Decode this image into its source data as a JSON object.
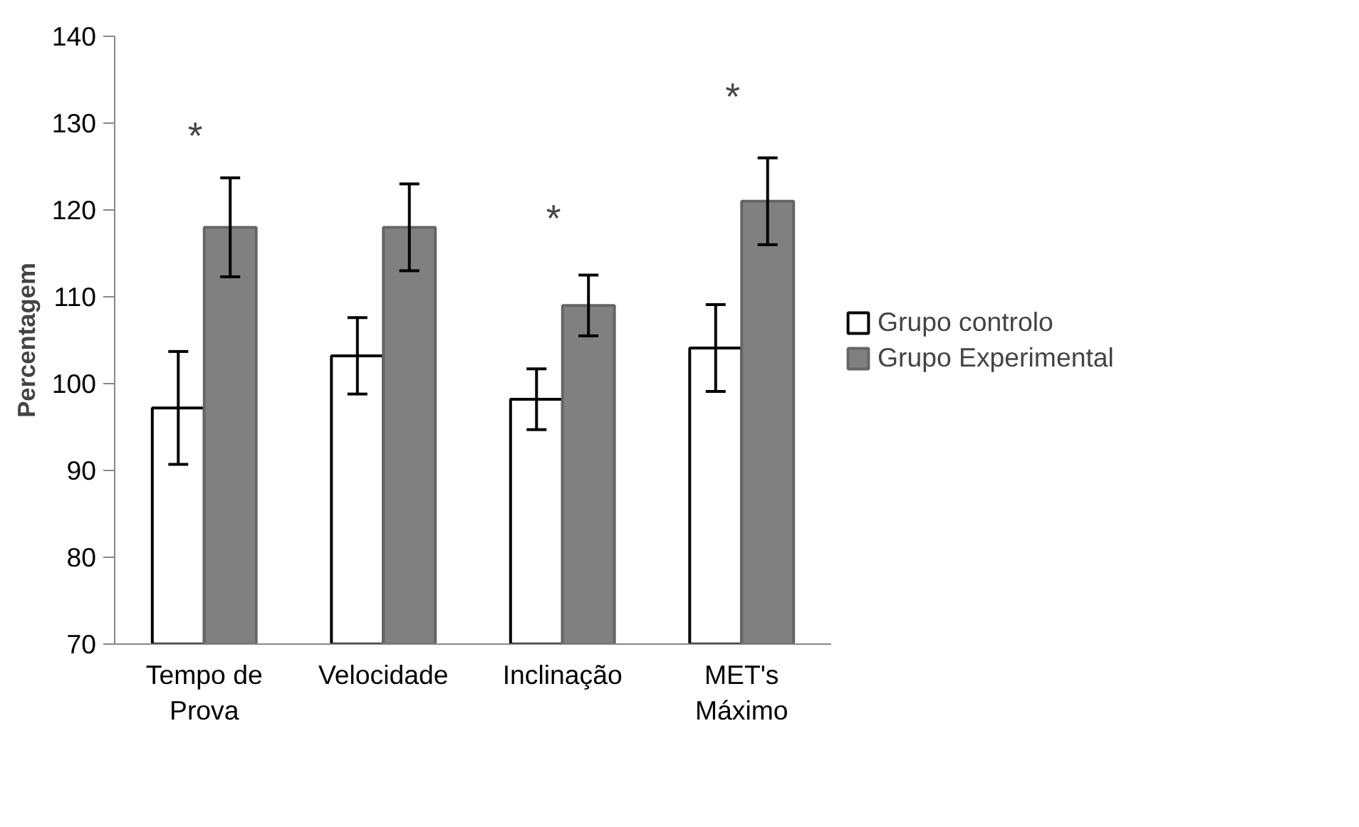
{
  "chart_data": {
    "type": "bar",
    "ylabel": "Percentagem",
    "categories": [
      "Tempo de\nProva",
      "Velocidade",
      "Inclinação",
      "MET's\nMáximo"
    ],
    "series": [
      {
        "name": "Grupo controlo",
        "color": "#ffffff",
        "values": [
          97.2,
          103.2,
          98.2,
          104.1
        ],
        "errors": [
          6.5,
          4.4,
          3.5,
          5
        ]
      },
      {
        "name": "Grupo Experimental",
        "color": "#808080",
        "values": [
          118,
          118,
          109,
          121
        ],
        "errors": [
          5.7,
          5,
          3.5,
          5
        ]
      }
    ],
    "ylim": [
      70,
      140
    ],
    "yticks": [
      70,
      80,
      90,
      100,
      110,
      120,
      130,
      140
    ],
    "grid": false,
    "legend": "right",
    "annotations": [
      "*",
      "*",
      "*"
    ]
  }
}
